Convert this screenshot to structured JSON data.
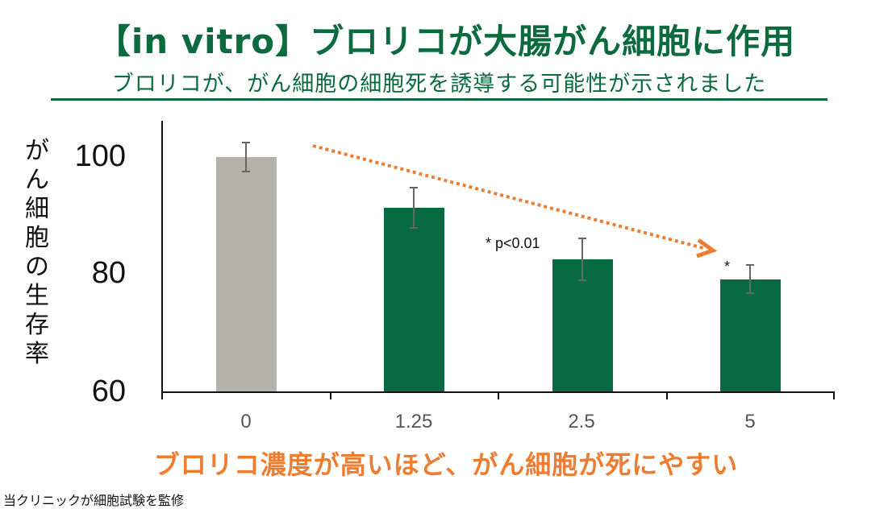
{
  "header": {
    "title": "【in vitro】ブロリコが大腸がん細胞に作用",
    "subtitle": "ブロリコが、がん細胞の細胞死を誘導する可能性が示されました"
  },
  "chart": {
    "ylabel": "がん細胞の生存率",
    "yticks": [
      "100",
      "80",
      "60"
    ],
    "xticks": [
      "0",
      "1.25",
      "2.5",
      "5"
    ],
    "annotations": {
      "significance": "* p<0.01",
      "star": "*"
    }
  },
  "footer": {
    "conclusion": "ブロリコ濃度が高いほど、がん細胞が死にやすい",
    "note": "当クリニックが細胞試験を監修"
  },
  "colors": {
    "control_bar": "#b3b3aa",
    "treated_bar": "#086a40",
    "title_green": "#0b6a3e",
    "accent_orange": "#ed7d31",
    "error_bar": "#666666"
  },
  "chart_data": {
    "type": "bar",
    "title": "【in vitro】ブロリコが大腸がん細胞に作用",
    "subtitle": "ブロリコが、がん細胞の細胞死を誘導する可能性が示されました",
    "xlabel": "",
    "ylabel": "がん細胞の生存率",
    "categories": [
      "0",
      "1.25",
      "2.5",
      "5"
    ],
    "values": [
      100,
      91.4,
      82.6,
      79.2
    ],
    "error": [
      2.4,
      3.4,
      3.5,
      2.4
    ],
    "ylim": [
      60,
      100
    ],
    "yticks": [
      60,
      80,
      100
    ],
    "grid": false,
    "legend": null,
    "bar_colors": [
      "#b3b3aa",
      "#086a40",
      "#086a40",
      "#086a40"
    ],
    "annotations": [
      {
        "text": "* p<0.01",
        "near": "2.5"
      },
      {
        "text": "*",
        "near": "5"
      },
      {
        "type": "dotted-arrow",
        "from": "0",
        "to": "5",
        "color": "#ed7d31"
      }
    ]
  }
}
